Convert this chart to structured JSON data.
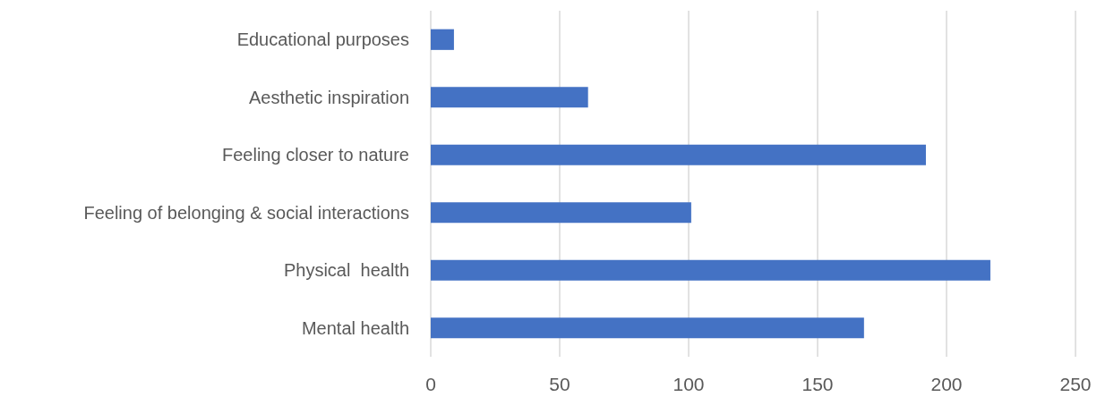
{
  "chart_data": {
    "type": "bar",
    "orientation": "horizontal",
    "categories": [
      "Educational purposes",
      "Aesthetic inspiration",
      "Feeling closer to nature",
      "Feeling of belonging & social interactions",
      "Physical  health",
      "Mental health"
    ],
    "values": [
      9,
      61,
      192,
      101,
      217,
      168
    ],
    "color": "#4472c4",
    "xlim": [
      0,
      250
    ],
    "xticks": [
      0,
      50,
      100,
      150,
      200,
      250
    ],
    "grid": "x"
  }
}
